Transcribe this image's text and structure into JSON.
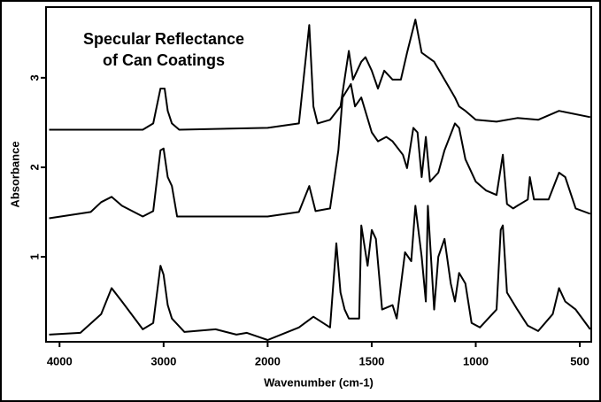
{
  "chart_data": {
    "type": "line",
    "title": [
      "Specular Reflectance",
      "of Can Coatings"
    ],
    "x_label": "Wavenumber (cm-1)",
    "y_label": "Absorbance",
    "xlim": [
      4130,
      445
    ],
    "xticks": [
      4000,
      3000,
      2000,
      1500,
      1000,
      500
    ],
    "ylim": [
      0.05,
      3.79
    ],
    "yticks": [
      1,
      2,
      3
    ],
    "series": [
      {
        "color": "#000000",
        "x": [
          4100,
          3800,
          3600,
          3500,
          3400,
          3200,
          3100,
          3030,
          3000,
          2960,
          2920,
          2800,
          2500,
          2300,
          2200,
          2000,
          1850,
          1780,
          1700,
          1670,
          1650,
          1630,
          1610,
          1560,
          1550,
          1520,
          1500,
          1480,
          1450,
          1400,
          1380,
          1340,
          1310,
          1290,
          1260,
          1240,
          1230,
          1200,
          1180,
          1150,
          1120,
          1100,
          1080,
          1050,
          1020,
          980,
          900,
          880,
          870,
          850,
          800,
          750,
          700,
          630,
          600,
          570,
          520,
          450
        ],
        "values": [
          0.13,
          0.15,
          0.36,
          0.65,
          0.5,
          0.19,
          0.26,
          0.9,
          0.8,
          0.46,
          0.31,
          0.16,
          0.19,
          0.13,
          0.15,
          0.07,
          0.21,
          0.33,
          0.21,
          1.15,
          0.6,
          0.41,
          0.31,
          0.31,
          1.35,
          0.9,
          1.3,
          1.2,
          0.41,
          0.46,
          0.31,
          1.05,
          0.95,
          1.57,
          1.0,
          0.5,
          1.57,
          0.41,
          1.0,
          1.2,
          0.7,
          0.5,
          0.82,
          0.7,
          0.26,
          0.21,
          0.41,
          1.3,
          1.35,
          0.6,
          0.41,
          0.23,
          0.17,
          0.36,
          0.65,
          0.5,
          0.41,
          0.19
        ]
      },
      {
        "color": "#000000",
        "x": [
          4100,
          3700,
          3600,
          3500,
          3400,
          3200,
          3100,
          3030,
          3000,
          2960,
          2920,
          2870,
          2000,
          1850,
          1800,
          1770,
          1700,
          1660,
          1640,
          1600,
          1580,
          1550,
          1500,
          1470,
          1430,
          1400,
          1350,
          1330,
          1300,
          1280,
          1260,
          1240,
          1220,
          1180,
          1150,
          1100,
          1080,
          1050,
          1000,
          950,
          900,
          870,
          850,
          820,
          800,
          750,
          740,
          720,
          650,
          600,
          570,
          520,
          450
        ],
        "values": [
          1.43,
          1.5,
          1.61,
          1.67,
          1.57,
          1.45,
          1.51,
          2.19,
          2.21,
          1.89,
          1.79,
          1.45,
          1.45,
          1.5,
          1.79,
          1.51,
          1.54,
          2.19,
          2.78,
          2.93,
          2.68,
          2.78,
          2.39,
          2.29,
          2.34,
          2.29,
          2.14,
          1.99,
          2.44,
          2.39,
          1.89,
          2.34,
          1.84,
          1.94,
          2.19,
          2.49,
          2.44,
          2.09,
          1.84,
          1.74,
          1.69,
          2.14,
          1.59,
          1.54,
          1.57,
          1.64,
          1.89,
          1.64,
          1.64,
          1.94,
          1.89,
          1.54,
          1.48
        ]
      },
      {
        "color": "#000000",
        "x": [
          4100,
          3200,
          3100,
          3030,
          2990,
          2960,
          2920,
          2850,
          2000,
          1850,
          1800,
          1780,
          1760,
          1700,
          1650,
          1610,
          1590,
          1550,
          1530,
          1500,
          1470,
          1440,
          1400,
          1360,
          1330,
          1290,
          1260,
          1230,
          1200,
          1150,
          1100,
          1080,
          1050,
          1000,
          900,
          800,
          700,
          600,
          450
        ],
        "values": [
          2.42,
          2.42,
          2.49,
          2.88,
          2.88,
          2.63,
          2.49,
          2.42,
          2.44,
          2.49,
          3.59,
          2.68,
          2.49,
          2.53,
          2.68,
          3.3,
          2.98,
          3.18,
          3.23,
          3.08,
          2.88,
          3.08,
          2.98,
          2.98,
          3.28,
          3.65,
          3.28,
          3.23,
          3.18,
          2.98,
          2.78,
          2.68,
          2.63,
          2.53,
          2.51,
          2.55,
          2.53,
          2.63,
          2.56
        ]
      }
    ]
  }
}
